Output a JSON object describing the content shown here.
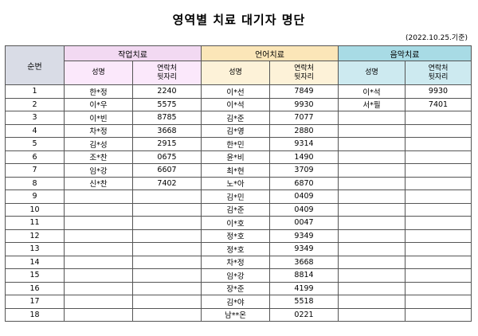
{
  "title": "영역별 치료 대기자 명단",
  "date_note": "(2022.10.25.기준)",
  "headers": {
    "num": "순번",
    "groups": [
      "작업치료",
      "언어치료",
      "음악치료"
    ],
    "name": "성명",
    "contact_line1": "연락처",
    "contact_line2": "뒷자리"
  },
  "rows": [
    {
      "n": "1",
      "w_name": "한*정",
      "w_tel": "2240",
      "l_name": "이*선",
      "l_tel": "7849",
      "m_name": "이*석",
      "m_tel": "9930"
    },
    {
      "n": "2",
      "w_name": "이*우",
      "w_tel": "5575",
      "l_name": "이*석",
      "l_tel": "9930",
      "m_name": "서*필",
      "m_tel": "7401"
    },
    {
      "n": "3",
      "w_name": "이*빈",
      "w_tel": "8785",
      "l_name": "김*준",
      "l_tel": "7077",
      "m_name": "",
      "m_tel": ""
    },
    {
      "n": "4",
      "w_name": "차*정",
      "w_tel": "3668",
      "l_name": "김*영",
      "l_tel": "2880",
      "m_name": "",
      "m_tel": ""
    },
    {
      "n": "5",
      "w_name": "김*성",
      "w_tel": "2915",
      "l_name": "한*민",
      "l_tel": "9314",
      "m_name": "",
      "m_tel": ""
    },
    {
      "n": "6",
      "w_name": "조*찬",
      "w_tel": "0675",
      "l_name": "윤*비",
      "l_tel": "1490",
      "m_name": "",
      "m_tel": ""
    },
    {
      "n": "7",
      "w_name": "임*강",
      "w_tel": "6607",
      "l_name": "최*현",
      "l_tel": "3709",
      "m_name": "",
      "m_tel": ""
    },
    {
      "n": "8",
      "w_name": "신*찬",
      "w_tel": "7402",
      "l_name": "노*아",
      "l_tel": "6870",
      "m_name": "",
      "m_tel": ""
    },
    {
      "n": "9",
      "w_name": "",
      "w_tel": "",
      "l_name": "김*민",
      "l_tel": "0409",
      "m_name": "",
      "m_tel": ""
    },
    {
      "n": "10",
      "w_name": "",
      "w_tel": "",
      "l_name": "김*준",
      "l_tel": "0409",
      "m_name": "",
      "m_tel": ""
    },
    {
      "n": "11",
      "w_name": "",
      "w_tel": "",
      "l_name": "이*호",
      "l_tel": "0047",
      "m_name": "",
      "m_tel": ""
    },
    {
      "n": "12",
      "w_name": "",
      "w_tel": "",
      "l_name": "정*호",
      "l_tel": "9349",
      "m_name": "",
      "m_tel": ""
    },
    {
      "n": "13",
      "w_name": "",
      "w_tel": "",
      "l_name": "정*호",
      "l_tel": "9349",
      "m_name": "",
      "m_tel": ""
    },
    {
      "n": "14",
      "w_name": "",
      "w_tel": "",
      "l_name": "차*정",
      "l_tel": "3668",
      "m_name": "",
      "m_tel": ""
    },
    {
      "n": "15",
      "w_name": "",
      "w_tel": "",
      "l_name": "임*강",
      "l_tel": "8814",
      "m_name": "",
      "m_tel": ""
    },
    {
      "n": "16",
      "w_name": "",
      "w_tel": "",
      "l_name": "장*준",
      "l_tel": "4199",
      "m_name": "",
      "m_tel": ""
    },
    {
      "n": "17",
      "w_name": "",
      "w_tel": "",
      "l_name": "김*야",
      "l_tel": "5518",
      "m_name": "",
      "m_tel": ""
    },
    {
      "n": "18",
      "w_name": "",
      "w_tel": "",
      "l_name": "남**온",
      "l_tel": "0221",
      "m_name": "",
      "m_tel": ""
    }
  ]
}
